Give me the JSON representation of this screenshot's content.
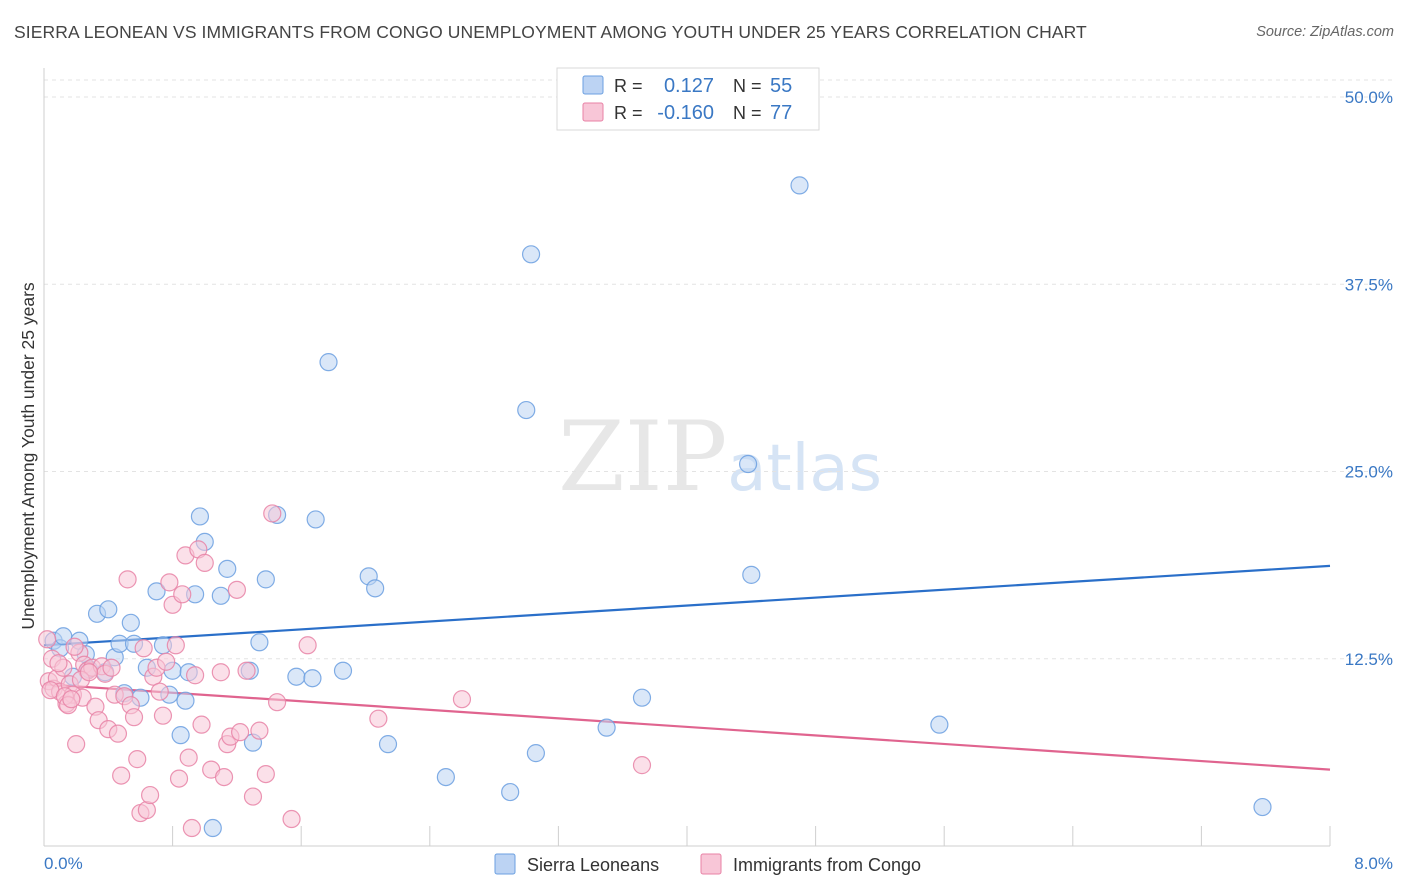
{
  "chart_data": {
    "type": "scatter",
    "title": "SIERRA LEONEAN VS IMMIGRANTS FROM CONGO UNEMPLOYMENT AMONG YOUTH UNDER 25 YEARS CORRELATION CHART",
    "source": "Source: ZipAtlas.com",
    "watermark": "ZIPatlas",
    "ylabel": "Unemployment Among Youth under 25 years",
    "xlim": [
      0,
      8
    ],
    "ylim": [
      0,
      50
    ],
    "x_tick_labels": [
      "0.0%",
      "8.0%"
    ],
    "y_ticks": [
      12.5,
      25.0,
      37.5,
      50.0
    ],
    "y_tick_labels": [
      "12.5%",
      "25.0%",
      "37.5%",
      "50.0%"
    ],
    "legend": [
      {
        "r_label": "R =",
        "r_value": "0.127",
        "n_label": "N =",
        "n_value": "55",
        "color": "#6b9fe0",
        "fill": "#bcd3f3"
      },
      {
        "r_label": "R =",
        "r_value": "-0.160",
        "n_label": "N =",
        "n_value": "77",
        "color": "#e882a6",
        "fill": "#f8c6d7"
      }
    ],
    "series": [
      {
        "name": "Sierra Leoneans",
        "color": "#6b9fe0",
        "fill": "#bcd3f3",
        "line_color": "#2a6fc9",
        "trend": {
          "x": [
            0,
            8
          ],
          "y": [
            13.4,
            18.7
          ]
        },
        "points": [
          [
            0.06,
            13.7
          ],
          [
            0.1,
            13.2
          ],
          [
            0.12,
            14.0
          ],
          [
            0.18,
            11.3
          ],
          [
            0.22,
            13.7
          ],
          [
            0.26,
            12.8
          ],
          [
            0.28,
            11.8
          ],
          [
            0.33,
            15.5
          ],
          [
            0.38,
            11.6
          ],
          [
            0.4,
            15.8
          ],
          [
            0.44,
            12.6
          ],
          [
            0.47,
            13.5
          ],
          [
            0.5,
            10.2
          ],
          [
            0.54,
            14.9
          ],
          [
            0.56,
            13.5
          ],
          [
            0.6,
            9.9
          ],
          [
            0.64,
            11.9
          ],
          [
            0.7,
            17.0
          ],
          [
            0.74,
            13.4
          ],
          [
            0.78,
            10.1
          ],
          [
            0.8,
            11.7
          ],
          [
            0.85,
            7.4
          ],
          [
            0.88,
            9.7
          ],
          [
            0.9,
            11.6
          ],
          [
            0.94,
            16.8
          ],
          [
            0.97,
            22.0
          ],
          [
            1.0,
            20.3
          ],
          [
            1.05,
            1.2
          ],
          [
            1.1,
            16.7
          ],
          [
            1.14,
            18.5
          ],
          [
            1.28,
            11.7
          ],
          [
            1.3,
            6.9
          ],
          [
            1.34,
            13.6
          ],
          [
            1.38,
            17.8
          ],
          [
            1.45,
            22.1
          ],
          [
            1.57,
            11.3
          ],
          [
            1.67,
            11.2
          ],
          [
            1.69,
            21.8
          ],
          [
            1.77,
            32.3
          ],
          [
            1.86,
            11.7
          ],
          [
            2.02,
            18.0
          ],
          [
            2.06,
            17.2
          ],
          [
            2.14,
            6.8
          ],
          [
            2.5,
            4.6
          ],
          [
            2.9,
            3.6
          ],
          [
            3.0,
            29.1
          ],
          [
            3.03,
            39.5
          ],
          [
            3.06,
            6.2
          ],
          [
            3.5,
            7.9
          ],
          [
            3.72,
            9.9
          ],
          [
            4.38,
            25.5
          ],
          [
            4.4,
            18.1
          ],
          [
            5.57,
            8.1
          ],
          [
            7.58,
            2.6
          ],
          [
            4.7,
            44.1
          ]
        ]
      },
      {
        "name": "Immigrants from Congo",
        "color": "#e882a6",
        "fill": "#f8c6d7",
        "line_color": "#e0648f",
        "trend": {
          "x": [
            0,
            8
          ],
          "y": [
            10.8,
            5.1
          ]
        },
        "points": [
          [
            0.03,
            11.0
          ],
          [
            0.05,
            12.5
          ],
          [
            0.06,
            10.5
          ],
          [
            0.08,
            11.2
          ],
          [
            0.1,
            10.3
          ],
          [
            0.12,
            11.9
          ],
          [
            0.14,
            9.5
          ],
          [
            0.16,
            10.8
          ],
          [
            0.18,
            10.1
          ],
          [
            0.2,
            6.8
          ],
          [
            0.22,
            12.9
          ],
          [
            0.24,
            9.9
          ],
          [
            0.25,
            12.1
          ],
          [
            0.27,
            11.7
          ],
          [
            0.3,
            11.9
          ],
          [
            0.32,
            9.3
          ],
          [
            0.34,
            8.4
          ],
          [
            0.36,
            12.0
          ],
          [
            0.38,
            11.5
          ],
          [
            0.4,
            7.8
          ],
          [
            0.42,
            11.9
          ],
          [
            0.44,
            10.1
          ],
          [
            0.46,
            7.5
          ],
          [
            0.48,
            4.7
          ],
          [
            0.5,
            10.0
          ],
          [
            0.52,
            17.8
          ],
          [
            0.54,
            9.4
          ],
          [
            0.56,
            8.6
          ],
          [
            0.58,
            5.8
          ],
          [
            0.6,
            2.2
          ],
          [
            0.62,
            13.2
          ],
          [
            0.64,
            2.4
          ],
          [
            0.66,
            3.4
          ],
          [
            0.68,
            11.3
          ],
          [
            0.7,
            11.9
          ],
          [
            0.72,
            10.3
          ],
          [
            0.74,
            8.7
          ],
          [
            0.76,
            12.3
          ],
          [
            0.78,
            17.6
          ],
          [
            0.8,
            16.1
          ],
          [
            0.82,
            13.4
          ],
          [
            0.84,
            4.5
          ],
          [
            0.86,
            16.8
          ],
          [
            0.88,
            19.4
          ],
          [
            0.9,
            5.9
          ],
          [
            0.92,
            1.2
          ],
          [
            0.94,
            11.4
          ],
          [
            0.96,
            19.8
          ],
          [
            0.98,
            8.1
          ],
          [
            1.0,
            18.9
          ],
          [
            1.04,
            5.1
          ],
          [
            1.1,
            11.6
          ],
          [
            1.12,
            4.6
          ],
          [
            1.14,
            6.8
          ],
          [
            1.16,
            7.3
          ],
          [
            1.2,
            17.1
          ],
          [
            1.22,
            7.6
          ],
          [
            1.26,
            11.7
          ],
          [
            1.3,
            3.3
          ],
          [
            1.34,
            7.7
          ],
          [
            1.38,
            4.8
          ],
          [
            1.42,
            22.2
          ],
          [
            1.45,
            9.6
          ],
          [
            1.54,
            1.8
          ],
          [
            1.64,
            13.4
          ],
          [
            0.02,
            13.8
          ],
          [
            0.04,
            10.4
          ],
          [
            0.09,
            12.2
          ],
          [
            0.13,
            10.0
          ],
          [
            0.15,
            9.4
          ],
          [
            0.17,
            9.8
          ],
          [
            0.19,
            13.3
          ],
          [
            0.23,
            11.1
          ],
          [
            2.08,
            8.5
          ],
          [
            2.6,
            9.8
          ],
          [
            3.72,
            5.4
          ],
          [
            0.28,
            11.6
          ]
        ]
      }
    ]
  }
}
